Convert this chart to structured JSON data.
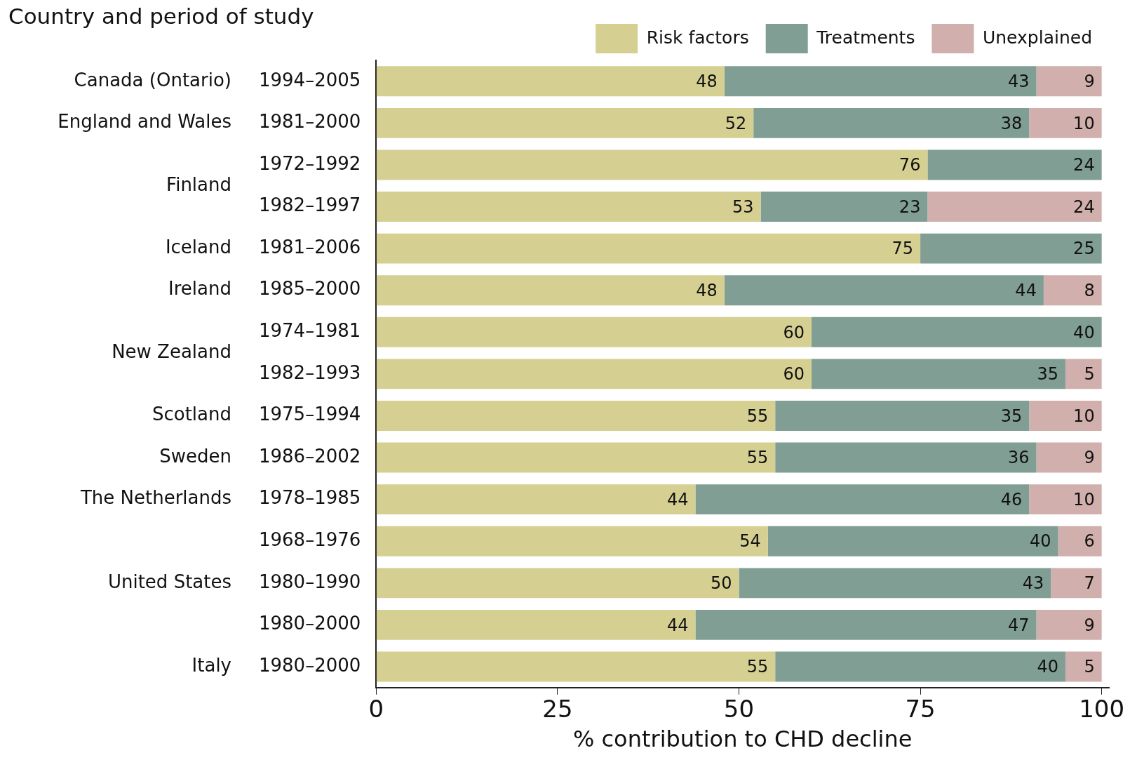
{
  "chart_data": {
    "type": "bar",
    "orientation": "horizontal",
    "stacked": true,
    "ylabel": "Country and period of study",
    "xlabel": "% contribution to CHD decline",
    "categories": [
      "1994–2005",
      "1981–2000",
      "1972–1992",
      "1982–1997",
      "1981–2006",
      "1985–2000",
      "1974–1981",
      "1982–1993",
      "1975–1994",
      "1986–2002",
      "1978–1985",
      "1968–1976",
      "1980–1990",
      "1980–2000",
      "1980–2000"
    ],
    "series": [
      {
        "name": "Risk factors",
        "color": "#d5d092",
        "values": [
          48,
          52,
          76,
          53,
          75,
          48,
          60,
          60,
          55,
          55,
          44,
          54,
          50,
          44,
          55
        ]
      },
      {
        "name": "Treatments",
        "color": "#809e94",
        "values": [
          43,
          38,
          24,
          23,
          25,
          44,
          40,
          35,
          35,
          36,
          46,
          40,
          43,
          47,
          40
        ]
      },
      {
        "name": "Unexplained",
        "color": "#d0afac",
        "values": [
          9,
          10,
          null,
          24,
          null,
          8,
          null,
          5,
          10,
          9,
          10,
          6,
          7,
          9,
          5
        ]
      }
    ],
    "annotations": [
      "Canada (Ontario)",
      "England and Wales",
      "Finland",
      "Iceland",
      "Ireland",
      "New Zealand",
      "Scotland",
      "Sweden",
      "The Netherlands",
      "United States",
      "Italy"
    ],
    "xlim": [
      0,
      101
    ],
    "xticks": [
      0,
      25,
      50,
      75,
      100
    ],
    "grid": false,
    "legend": "top",
    "data_labels": true
  }
}
